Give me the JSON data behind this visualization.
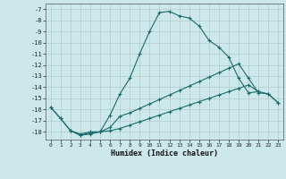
{
  "xlabel": "Humidex (Indice chaleur)",
  "xlim": [
    -0.5,
    23.5
  ],
  "ylim": [
    -18.7,
    -6.5
  ],
  "yticks": [
    -18,
    -17,
    -16,
    -15,
    -14,
    -13,
    -12,
    -11,
    -10,
    -9,
    -8,
    -7
  ],
  "xticks": [
    0,
    1,
    2,
    3,
    4,
    5,
    6,
    7,
    8,
    9,
    10,
    11,
    12,
    13,
    14,
    15,
    16,
    17,
    18,
    19,
    20,
    21,
    22,
    23
  ],
  "bg_color": "#cce8ea",
  "line_color": "#1a6b6b",
  "grid_color": "#b0cccc",
  "line1_x": [
    0,
    1,
    2,
    3,
    4,
    5,
    6,
    7,
    8,
    9,
    10,
    11,
    12,
    13,
    14,
    15,
    16,
    17,
    18,
    19,
    20,
    21
  ],
  "line1_y": [
    -15.8,
    -16.8,
    -17.9,
    -18.3,
    -18.1,
    -18.0,
    -16.5,
    -14.6,
    -13.2,
    -11.0,
    -9.0,
    -7.3,
    -7.2,
    -7.6,
    -7.8,
    -8.5,
    -9.8,
    -10.4,
    -11.3,
    -13.2,
    -14.5,
    -14.4
  ],
  "line2_x": [
    2,
    3,
    4,
    5,
    6,
    7,
    8,
    9,
    10,
    11,
    12,
    13,
    14,
    15,
    16,
    17,
    18,
    19,
    20,
    21,
    22,
    23
  ],
  "line2_y": [
    -17.9,
    -18.2,
    -18.0,
    -18.0,
    -17.6,
    -16.6,
    -16.3,
    -15.9,
    -15.5,
    -15.1,
    -14.7,
    -14.3,
    -13.9,
    -13.5,
    -13.1,
    -12.7,
    -12.3,
    -11.9,
    -13.2,
    -14.5,
    -14.6,
    -15.4
  ],
  "line3_x": [
    0,
    1,
    2,
    3,
    4,
    5,
    6,
    7,
    8,
    9,
    10,
    11,
    12,
    13,
    14,
    15,
    16,
    17,
    18,
    19,
    20,
    21,
    22,
    23
  ],
  "line3_y": [
    -15.8,
    -16.8,
    -17.9,
    -18.3,
    -18.2,
    -18.0,
    -17.9,
    -17.7,
    -17.4,
    -17.1,
    -16.8,
    -16.5,
    -16.2,
    -15.9,
    -15.6,
    -15.3,
    -15.0,
    -14.7,
    -14.4,
    -14.1,
    -13.8,
    -14.4,
    -14.6,
    -15.4
  ]
}
